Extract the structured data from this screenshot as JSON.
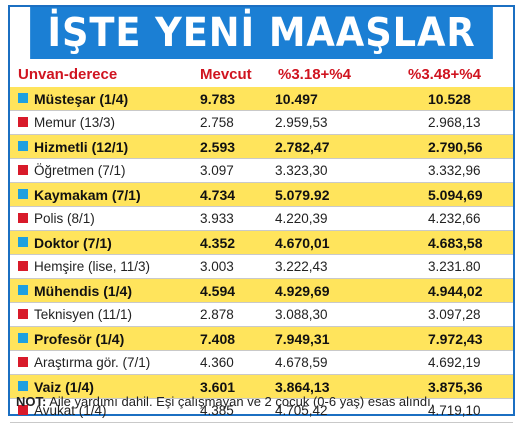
{
  "title": "İŞTE YENİ MAAŞLAR",
  "headers": {
    "unvan": "Unvan-derece",
    "mevcut": "Mevcut",
    "col1": "%3.18+%4",
    "col2": "%3.48+%4"
  },
  "rows": [
    {
      "name": "Müsteşar (1/4)",
      "mevcut": "9.783",
      "v1": "10.497",
      "v2": "10.528",
      "highlight": true
    },
    {
      "name": "Memur (13/3)",
      "mevcut": "2.758",
      "v1": "2.959,53",
      "v2": "2.968,13",
      "highlight": false
    },
    {
      "name": "Hizmetli (12/1)",
      "mevcut": "2.593",
      "v1": "2.782,47",
      "v2": "2.790,56",
      "highlight": true
    },
    {
      "name": "Öğretmen (7/1)",
      "mevcut": "3.097",
      "v1": "3.323,30",
      "v2": "3.332,96",
      "highlight": false
    },
    {
      "name": "Kaymakam (7/1)",
      "mevcut": "4.734",
      "v1": "5.079.92",
      "v2": "5.094,69",
      "highlight": true
    },
    {
      "name": "Polis (8/1)",
      "mevcut": "3.933",
      "v1": "4.220,39",
      "v2": "4.232,66",
      "highlight": false
    },
    {
      "name": "Doktor (7/1)",
      "mevcut": "4.352",
      "v1": "4.670,01",
      "v2": "4.683,58",
      "highlight": true
    },
    {
      "name": "Hemşire (lise, 11/3)",
      "mevcut": "3.003",
      "v1": "3.222,43",
      "v2": "3.231.80",
      "highlight": false
    },
    {
      "name": "Mühendis (1/4)",
      "mevcut": "4.594",
      "v1": "4.929,69",
      "v2": "4.944,02",
      "highlight": true
    },
    {
      "name": "Teknisyen (11/1)",
      "mevcut": "2.878",
      "v1": "3.088,30",
      "v2": "3.097,28",
      "highlight": false
    },
    {
      "name": "Profesör (1/4)",
      "mevcut": "7.408",
      "v1": "7.949,31",
      "v2": "7.972,43",
      "highlight": true
    },
    {
      "name": "Araştırma gör. (7/1)",
      "mevcut": "4.360",
      "v1": "4.678,59",
      "v2": "4.692,19",
      "highlight": false
    },
    {
      "name": "Vaiz (1/4)",
      "mevcut": "3.601",
      "v1": "3.864,13",
      "v2": "3.875,36",
      "highlight": true
    },
    {
      "name": "Avukat (1/4)",
      "mevcut": "4.385",
      "v1": "4.705,42",
      "v2": "4.719,10",
      "highlight": false
    }
  ],
  "note": {
    "label": "NOT:",
    "text": " Aile yardımı dahil. Eşi çalışmayan ve 2 çocuk (0-6 yaş) esas alındı."
  },
  "colors": {
    "title_bg": "#1b7fd4",
    "highlight_bg": "#ffe45c",
    "header_text": "#d01420",
    "marker_blue": "#1ea0e0",
    "marker_red": "#d81a2a"
  }
}
